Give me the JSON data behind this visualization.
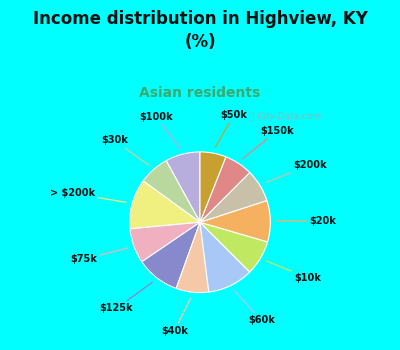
{
  "title": "Income distribution in Highview, KY\n(%)",
  "subtitle": "Asian residents",
  "title_color": "#111111",
  "subtitle_color": "#3aaa70",
  "background_color": "#00ffff",
  "chart_bg": "#d8f0e0",
  "labels": [
    "$100k",
    "$30k",
    "> $200k",
    "$75k",
    "$125k",
    "$40k",
    "$60k",
    "$10k",
    "$20k",
    "$200k",
    "$150k",
    "$50k"
  ],
  "values": [
    8.0,
    7.0,
    11.5,
    8.0,
    10.0,
    7.5,
    10.5,
    8.0,
    9.5,
    7.5,
    6.5,
    6.0
  ],
  "colors": [
    "#b8aedd",
    "#b8d8a0",
    "#f0f080",
    "#f0b0c0",
    "#8888cc",
    "#f5c8a8",
    "#a8c8f8",
    "#c0e860",
    "#f5b060",
    "#c8c0a8",
    "#e08888",
    "#c8a030"
  ],
  "startangle": 90,
  "figsize": [
    4.0,
    3.5
  ],
  "dpi": 100
}
